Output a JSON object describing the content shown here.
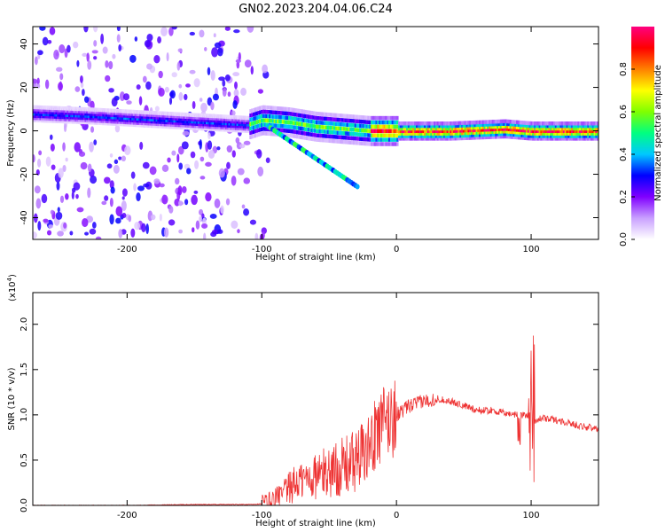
{
  "figure_title": "GN02.2023.204.04.06.C24",
  "chart_data": [
    {
      "type": "heatmap",
      "xlabel": "Height of straight line (km)",
      "ylabel": "Frequency (Hz)",
      "xlim": [
        -270,
        150
      ],
      "ylim": [
        -50,
        48
      ],
      "x_ticks": [
        -200,
        -100,
        0,
        100
      ],
      "x_tick_labels": [
        "-200",
        "-100",
        "0",
        "100"
      ],
      "y_ticks": [
        -40,
        -20,
        0,
        20,
        40
      ],
      "y_tick_labels": [
        "-40",
        "-20",
        "0",
        "20",
        "40"
      ],
      "ridge": [
        {
          "x": -270,
          "f": 8
        },
        {
          "x": -230,
          "f": 7
        },
        {
          "x": -200,
          "f": 6
        },
        {
          "x": -170,
          "f": 5
        },
        {
          "x": -140,
          "f": 4
        },
        {
          "x": -110,
          "f": 3
        },
        {
          "x": -100,
          "f": 5
        },
        {
          "x": -80,
          "f": 4
        },
        {
          "x": -60,
          "f": 2
        },
        {
          "x": -40,
          "f": 1
        },
        {
          "x": -20,
          "f": 0
        },
        {
          "x": 0,
          "f": 0
        },
        {
          "x": 40,
          "f": 0
        },
        {
          "x": 80,
          "f": 1
        },
        {
          "x": 100,
          "f": 0
        },
        {
          "x": 150,
          "f": 0
        }
      ],
      "colorbar": {
        "label": "Normalized spectral amplitude",
        "range": [
          0,
          1
        ],
        "ticks": [
          0.0,
          0.2,
          0.4,
          0.6,
          0.8
        ],
        "tick_labels": [
          "0.0",
          "0.2",
          "0.4",
          "0.6",
          "0.8"
        ],
        "colors": [
          "#ffffff",
          "#c9a0ff",
          "#8000ff",
          "#0000ff",
          "#00c8ff",
          "#00ff80",
          "#80ff00",
          "#ffff00",
          "#ff8000",
          "#ff0000",
          "#ff0080"
        ]
      }
    },
    {
      "type": "line",
      "xlabel": "Height of straight line (km)",
      "ylabel": "SNR (10 * v/v)",
      "y_multiplier_label": "(x10",
      "y_multiplier_exp": "4",
      "y_multiplier_close": ")",
      "xlim": [
        -270,
        150
      ],
      "ylim": [
        0,
        2.35
      ],
      "x_ticks": [
        -200,
        -100,
        0,
        100
      ],
      "x_tick_labels": [
        "-200",
        "-100",
        "0",
        "100"
      ],
      "y_ticks": [
        0.0,
        0.5,
        1.0,
        1.5,
        2.0
      ],
      "y_tick_labels": [
        "0.0",
        "0.5",
        "1.0",
        "1.5",
        "2.0"
      ],
      "color": "#ee3333",
      "series": [
        {
          "x": [
            -270,
            -200,
            -150,
            -110,
            -95,
            -85,
            -75,
            -65,
            -55,
            -45,
            -35,
            -25,
            -18,
            -10,
            0,
            10,
            20,
            30,
            40,
            50,
            60,
            70,
            80,
            90,
            95,
            100,
            103,
            110,
            120,
            130,
            140,
            150
          ],
          "y": [
            0.0,
            0.0,
            0.01,
            0.01,
            0.02,
            0.1,
            0.25,
            0.3,
            0.35,
            0.4,
            0.45,
            0.55,
            0.7,
            0.9,
            1.0,
            1.1,
            1.15,
            1.18,
            1.15,
            1.1,
            1.05,
            1.05,
            1.02,
            1.0,
            1.0,
            1.0,
            0.95,
            0.96,
            0.94,
            0.9,
            0.87,
            0.84
          ]
        }
      ]
    }
  ]
}
